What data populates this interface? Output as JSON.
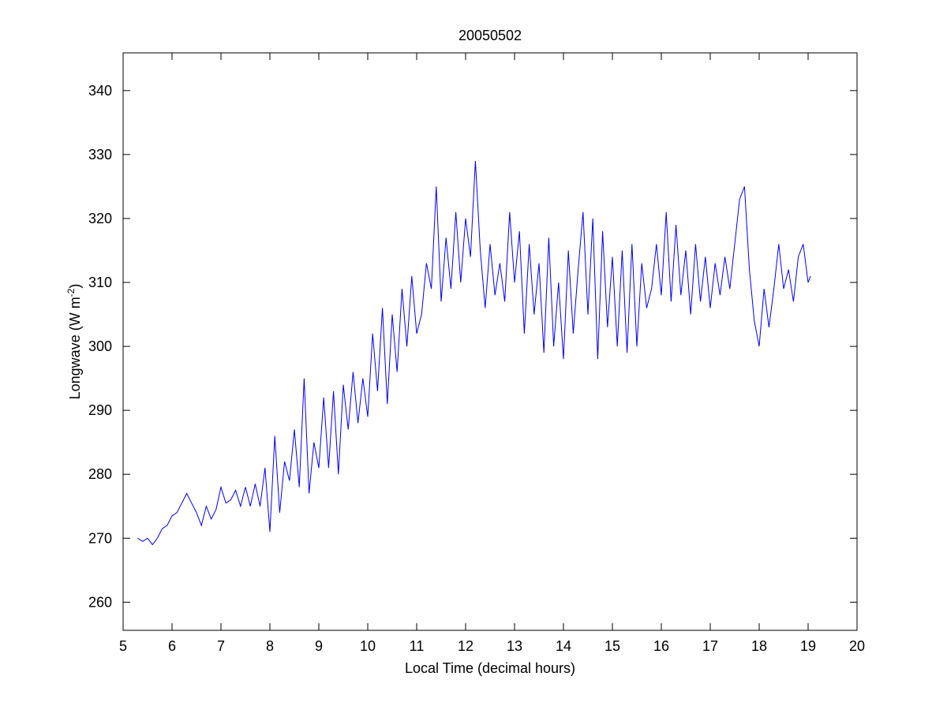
{
  "chart_data": {
    "type": "line",
    "title": "20050502",
    "xlabel": "Local Time (decimal hours)",
    "ylabel": [
      "Longwave (W m",
      "-2",
      ")"
    ],
    "xlim": [
      5,
      20
    ],
    "xticks": [
      5,
      6,
      7,
      8,
      9,
      10,
      11,
      12,
      13,
      14,
      15,
      16,
      17,
      18,
      19,
      20
    ],
    "ylim": [
      255.6,
      345.9
    ],
    "yticks": [
      260,
      270,
      280,
      290,
      300,
      310,
      320,
      330,
      340
    ],
    "grid": false,
    "series": [
      {
        "name": null,
        "color": "#0000ff",
        "x": [
          5.3,
          5.4,
          5.5,
          5.6,
          5.7,
          5.8,
          5.9,
          6.0,
          6.1,
          6.2,
          6.3,
          6.4,
          6.5,
          6.6,
          6.7,
          6.8,
          6.9,
          7.0,
          7.1,
          7.2,
          7.3,
          7.4,
          7.5,
          7.6,
          7.7,
          7.8,
          7.9,
          8.0,
          8.1,
          8.2,
          8.3,
          8.4,
          8.5,
          8.6,
          8.7,
          8.8,
          8.9,
          9.0,
          9.1,
          9.2,
          9.3,
          9.4,
          9.5,
          9.6,
          9.7,
          9.8,
          9.9,
          10.0,
          10.1,
          10.2,
          10.3,
          10.4,
          10.5,
          10.6,
          10.7,
          10.8,
          10.9,
          11.0,
          11.1,
          11.2,
          11.3,
          11.4,
          11.5,
          11.6,
          11.7,
          11.8,
          11.9,
          12.0,
          12.1,
          12.2,
          12.3,
          12.4,
          12.5,
          12.6,
          12.7,
          12.8,
          12.9,
          13.0,
          13.1,
          13.2,
          13.3,
          13.4,
          13.5,
          13.6,
          13.7,
          13.8,
          13.9,
          14.0,
          14.1,
          14.2,
          14.3,
          14.4,
          14.5,
          14.6,
          14.7,
          14.8,
          14.9,
          15.0,
          15.1,
          15.2,
          15.3,
          15.4,
          15.5,
          15.6,
          15.7,
          15.8,
          15.9,
          16.0,
          16.1,
          16.2,
          16.3,
          16.4,
          16.5,
          16.6,
          16.7,
          16.8,
          16.9,
          17.0,
          17.1,
          17.2,
          17.3,
          17.4,
          17.5,
          17.6,
          17.7,
          17.8,
          17.9,
          18.0,
          18.1,
          18.2,
          18.3,
          18.4,
          18.5,
          18.6,
          18.7,
          18.8,
          18.9,
          19.0,
          19.05
        ],
        "values": [
          270,
          269.5,
          270,
          269,
          270,
          271.5,
          272,
          273.5,
          274,
          275.5,
          277,
          275.5,
          274,
          272,
          275,
          273,
          274.5,
          278,
          275.5,
          276,
          277.5,
          275,
          278,
          275,
          278.5,
          275,
          281,
          271,
          286,
          274,
          282,
          279,
          287,
          278,
          295,
          277,
          285,
          281,
          292,
          281,
          293,
          280,
          294,
          287,
          296,
          288,
          295,
          289,
          302,
          293,
          306,
          291,
          305,
          296,
          309,
          300,
          311,
          302,
          305,
          313,
          309,
          325,
          307,
          317,
          309,
          321,
          310,
          320,
          314,
          329,
          315,
          306,
          316,
          308,
          313,
          307,
          321,
          310,
          318,
          302,
          316,
          305,
          313,
          299,
          317,
          300,
          310,
          298,
          315,
          302,
          312,
          321,
          305,
          320,
          298,
          318,
          303,
          314,
          300,
          315,
          299,
          316,
          300,
          313,
          306,
          309,
          316,
          308,
          321,
          307,
          319,
          308,
          315,
          305,
          316,
          307,
          314,
          306,
          313,
          308,
          314,
          309,
          316,
          323,
          325,
          312,
          304,
          300,
          309,
          303,
          309,
          316,
          309,
          312,
          307,
          314,
          316,
          310,
          311
        ]
      }
    ]
  }
}
